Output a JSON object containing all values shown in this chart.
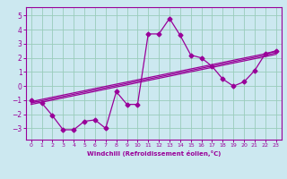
{
  "xlabel": "Windchill (Refroidissement éolien,°C)",
  "bg_color": "#cce8f0",
  "grid_color": "#99ccbb",
  "line_color": "#990099",
  "xlim": [
    -0.5,
    23.5
  ],
  "ylim": [
    -3.8,
    5.6
  ],
  "xticks": [
    0,
    1,
    2,
    3,
    4,
    5,
    6,
    7,
    8,
    9,
    10,
    11,
    12,
    13,
    14,
    15,
    16,
    17,
    18,
    19,
    20,
    21,
    22,
    23
  ],
  "yticks": [
    -3,
    -2,
    -1,
    0,
    1,
    2,
    3,
    4,
    5
  ],
  "main_x": [
    0,
    1,
    2,
    3,
    4,
    5,
    6,
    7,
    8,
    9,
    10,
    11,
    12,
    13,
    14,
    15,
    16,
    17,
    18,
    19,
    20,
    21,
    22,
    23
  ],
  "main_y": [
    -1.0,
    -1.2,
    -2.1,
    -3.1,
    -3.1,
    -2.5,
    -2.4,
    -3.0,
    -0.4,
    -1.3,
    -1.3,
    3.7,
    3.7,
    4.8,
    3.6,
    2.2,
    2.0,
    1.4,
    0.5,
    0.0,
    0.3,
    1.1,
    2.3,
    2.5
  ],
  "line2_x": [
    0,
    23
  ],
  "line2_y": [
    -1.1,
    2.45
  ],
  "line3_x": [
    0,
    23
  ],
  "line3_y": [
    -1.2,
    2.35
  ],
  "line4_x": [
    0,
    23
  ],
  "line4_y": [
    -1.3,
    2.25
  ]
}
